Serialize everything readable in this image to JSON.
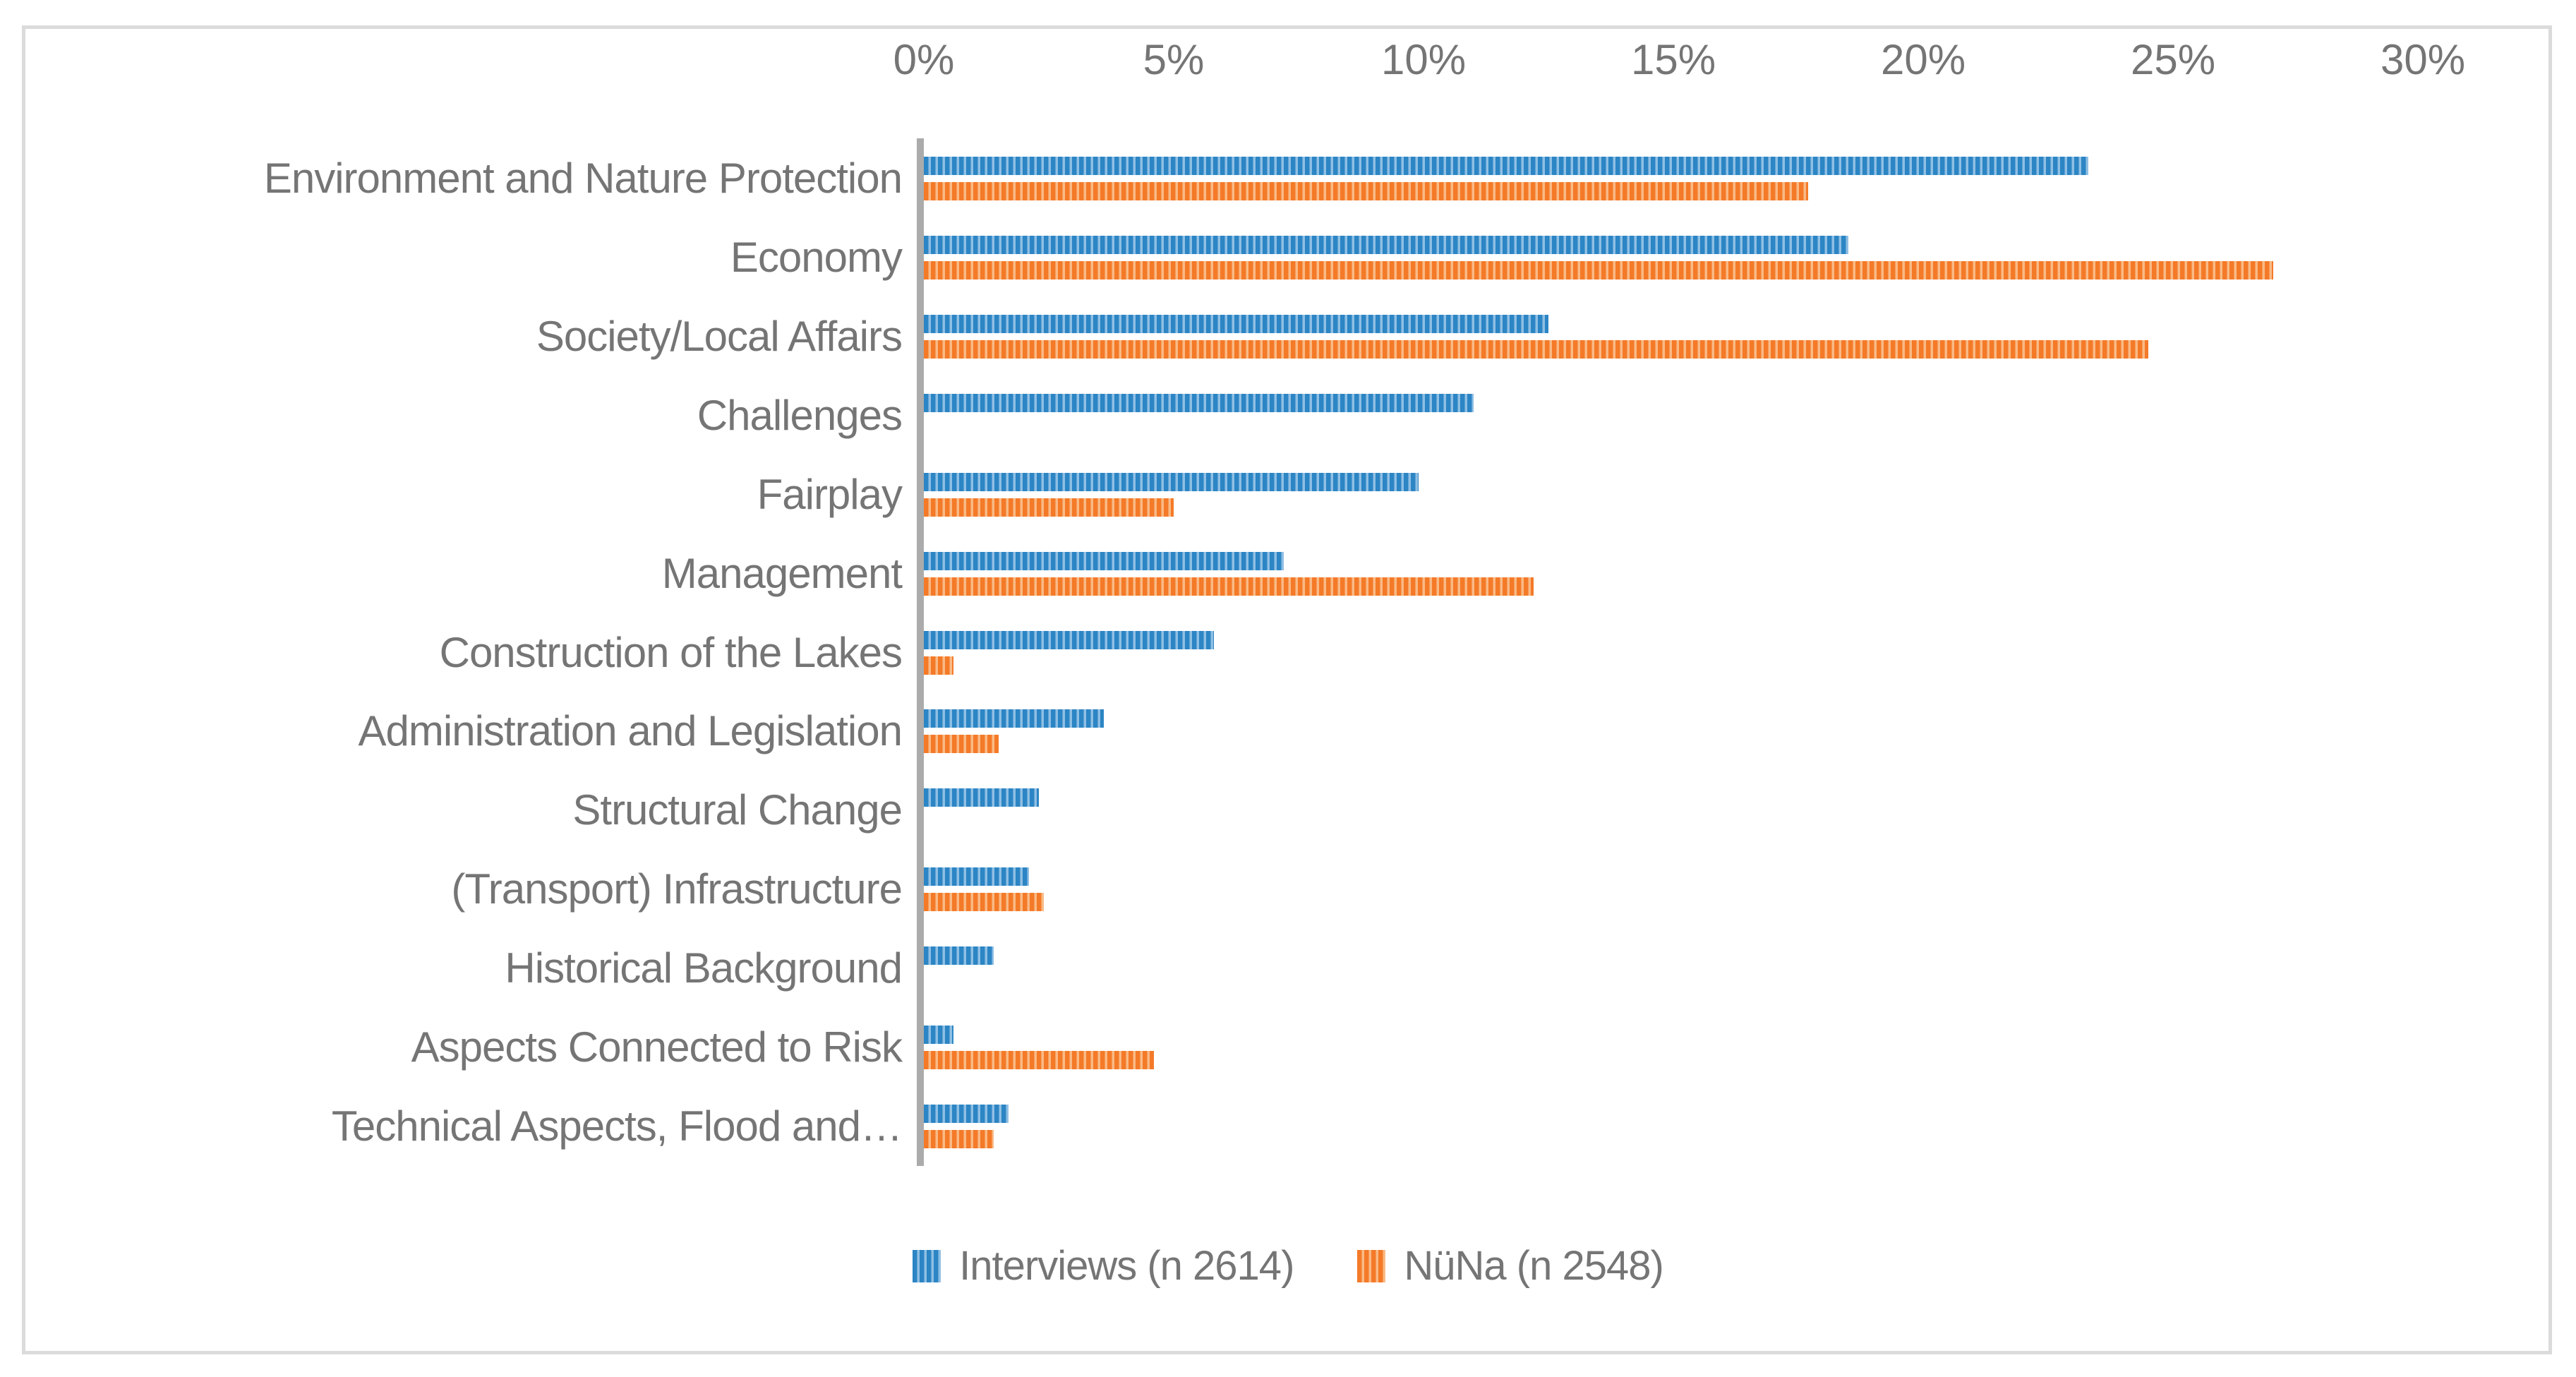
{
  "figure": {
    "background_color": "#FFFFFF",
    "frame_color": "#DBDBDB",
    "axis_line_color": "#ABABAB",
    "text_color": "#757575"
  },
  "chart_data": {
    "type": "bar",
    "orientation": "horizontal",
    "title": "",
    "xlabel": "",
    "ylabel": "",
    "x_axis": {
      "position": "top",
      "min": 0,
      "max": 30,
      "tick_labels": [
        "0%",
        "5%",
        "10%",
        "15%",
        "20%",
        "25%",
        "30%"
      ],
      "tick_values": [
        0,
        5,
        10,
        15,
        20,
        25,
        30
      ],
      "gridlines": false,
      "unit": "%"
    },
    "categories": [
      "Environment and Nature Protection",
      "Economy",
      "Society/Local Affairs",
      "Challenges",
      "Fairplay",
      "Management",
      "Construction of the Lakes",
      "Administration and Legislation",
      "Structural Change",
      "(Transport) Infrastructure",
      "Historical Background",
      "Aspects Connected to Risk",
      "Technical Aspects, Flood and…"
    ],
    "series": [
      {
        "name": "Interviews (n 2614)",
        "color_dark": "#2C85C4",
        "color_light": "#8FBFE4",
        "pattern": "vertical-stripes",
        "values": [
          23.3,
          18.5,
          12.5,
          11.0,
          9.9,
          7.2,
          5.8,
          3.6,
          2.3,
          2.1,
          1.4,
          0.6,
          1.7
        ]
      },
      {
        "name": "NüNa (n 2548)",
        "color_dark": "#F47A28",
        "color_light": "#F9BA86",
        "pattern": "vertical-stripes",
        "values": [
          17.7,
          27.0,
          24.5,
          null,
          5.0,
          12.2,
          0.6,
          1.5,
          null,
          2.4,
          null,
          4.6,
          1.4
        ]
      }
    ],
    "legend_position": "bottom"
  }
}
